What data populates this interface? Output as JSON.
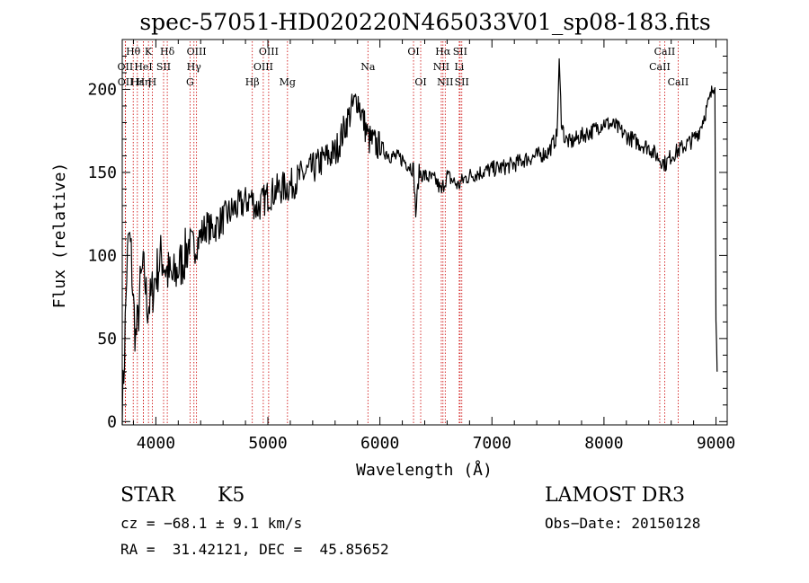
{
  "chart_data": {
    "type": "line",
    "title": "spec-57051-HD020220N465033V01_sp08-183.fits",
    "xlabel": "Wavelength (Å)",
    "ylabel": "Flux (relative)",
    "xlim": [
      3700,
      9100
    ],
    "ylim": [
      -2,
      230
    ],
    "xticks": [
      4000,
      5000,
      6000,
      7000,
      8000,
      9000
    ],
    "yticks": [
      0,
      50,
      100,
      150,
      200
    ],
    "xtick_labels": [
      "4000",
      "5000",
      "6000",
      "7000",
      "8000",
      "9000"
    ],
    "ytick_labels": [
      "0",
      "50",
      "100",
      "150",
      "200"
    ],
    "spectrum": {
      "x": [
        3700,
        3720,
        3740,
        3760,
        3780,
        3800,
        3820,
        3840,
        3860,
        3880,
        3900,
        3920,
        3950,
        3980,
        4000,
        4050,
        4100,
        4150,
        4200,
        4250,
        4300,
        4350,
        4400,
        4450,
        4500,
        4600,
        4700,
        4800,
        4850,
        4900,
        5000,
        5100,
        5200,
        5300,
        5400,
        5500,
        5600,
        5650,
        5700,
        5750,
        5800,
        5850,
        5900,
        6000,
        6100,
        6200,
        6300,
        6320,
        6350,
        6400,
        6500,
        6550,
        6563,
        6600,
        6650,
        6700,
        6750,
        6800,
        6900,
        7000,
        7100,
        7200,
        7300,
        7400,
        7500,
        7550,
        7580,
        7600,
        7620,
        7650,
        7700,
        7800,
        7900,
        8000,
        8100,
        8200,
        8300,
        8400,
        8500,
        8550,
        8600,
        8700,
        8800,
        8850,
        8900,
        8950,
        8990,
        9000,
        9010
      ],
      "y": [
        5,
        42,
        90,
        112,
        100,
        70,
        50,
        60,
        80,
        90,
        88,
        70,
        72,
        82,
        88,
        100,
        90,
        85,
        92,
        98,
        108,
        105,
        112,
        118,
        115,
        122,
        128,
        132,
        135,
        128,
        136,
        140,
        142,
        148,
        152,
        158,
        162,
        170,
        180,
        188,
        195,
        182,
        170,
        165,
        160,
        158,
        152,
        125,
        150,
        148,
        145,
        138,
        142,
        148,
        145,
        142,
        146,
        148,
        150,
        152,
        153,
        155,
        158,
        160,
        162,
        168,
        172,
        215,
        182,
        170,
        168,
        172,
        175,
        180,
        178,
        172,
        168,
        165,
        158,
        155,
        160,
        165,
        170,
        175,
        185,
        195,
        205,
        60,
        30
      ]
    },
    "lines": [
      {
        "label": "Hθ",
        "x": 3798,
        "row": 1
      },
      {
        "label": "K",
        "x": 3934,
        "row": 1
      },
      {
        "label": "Hδ",
        "x": 4102,
        "row": 1
      },
      {
        "label": "OIII",
        "x": 4363,
        "row": 1
      },
      {
        "label": "OIII",
        "x": 5007,
        "row": 1
      },
      {
        "label": "OI",
        "x": 6300,
        "row": 1
      },
      {
        "label": "Hα",
        "x": 6563,
        "row": 1
      },
      {
        "label": "SII",
        "x": 6716,
        "row": 1
      },
      {
        "label": "CaII",
        "x": 8542,
        "row": 1
      },
      {
        "label": "OII",
        "x": 3727,
        "row": 2
      },
      {
        "label": "HeI",
        "x": 3889,
        "row": 2
      },
      {
        "label": "SII",
        "x": 4069,
        "row": 2
      },
      {
        "label": "Hγ",
        "x": 4340,
        "row": 2
      },
      {
        "label": "OIII",
        "x": 4959,
        "row": 2
      },
      {
        "label": "Na",
        "x": 5893,
        "row": 2
      },
      {
        "label": "NII",
        "x": 6548,
        "row": 2
      },
      {
        "label": "Li",
        "x": 6708,
        "row": 2
      },
      {
        "label": "CaII",
        "x": 8498,
        "row": 2
      },
      {
        "label": "OII",
        "x": 3729,
        "row": 3
      },
      {
        "label": "Hε",
        "x": 3835,
        "row": 3
      },
      {
        "label": "Hη",
        "x": 3889,
        "row": 3
      },
      {
        "label": "H",
        "x": 3968,
        "row": 3
      },
      {
        "label": "G",
        "x": 4305,
        "row": 3
      },
      {
        "label": "Hβ",
        "x": 4861,
        "row": 3
      },
      {
        "label": "Mg",
        "x": 5175,
        "row": 3
      },
      {
        "label": "OI",
        "x": 6364,
        "row": 3
      },
      {
        "label": "NII",
        "x": 6583,
        "row": 3
      },
      {
        "label": "SII",
        "x": 6731,
        "row": 3
      },
      {
        "label": "CaII",
        "x": 8662,
        "row": 3
      }
    ]
  },
  "info": {
    "class_label": "STAR",
    "subclass": "K5",
    "survey": "LAMOST DR3",
    "cz_line": "cz = −68.1 ± 9.1 km/s",
    "obs_date": "Obs−Date: 20150128",
    "radec_line": "RA =  31.42121, DEC =  45.85652"
  }
}
